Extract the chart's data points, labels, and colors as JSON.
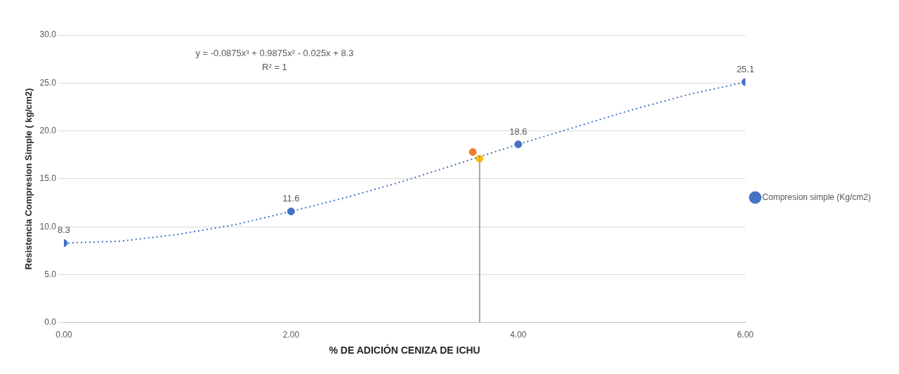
{
  "chart_data": {
    "type": "scatter",
    "xlabel": "% DE ADICIÓN CENIZA DE ICHU",
    "ylabel": "Resistencia Compresion Simple ( kg/cm2)",
    "xlim": [
      0,
      6
    ],
    "xticks": [
      {
        "value": 0,
        "label": "0.00"
      },
      {
        "value": 2,
        "label": "2.00"
      },
      {
        "value": 4,
        "label": "4.00"
      },
      {
        "value": 6,
        "label": "6.00"
      }
    ],
    "ylim": [
      0,
      30
    ],
    "yticks": [
      {
        "value": 0,
        "label": "0.0"
      },
      {
        "value": 5,
        "label": "5.0"
      },
      {
        "value": 10,
        "label": "10.0"
      },
      {
        "value": 15,
        "label": "15.0"
      },
      {
        "value": 20,
        "label": "20.0"
      },
      {
        "value": 25,
        "label": "25.0"
      },
      {
        "value": 30,
        "label": "30.0"
      }
    ],
    "grid": "y",
    "legend": "right",
    "marker": "circle",
    "annotations": [
      "y = -0.0875x³ + 0.9875x² - 0.025x + 8.3",
      "R² = 1"
    ],
    "series": [
      {
        "type": "line",
        "color": "#4472c4",
        "line_style": "dotted",
        "marker": "none",
        "x": [
          0,
          0.5,
          1,
          1.5,
          2,
          2.5,
          3,
          3.5,
          4,
          4.5,
          5,
          5.5,
          6
        ],
        "values": [
          8.3,
          8.5,
          9.2,
          10.2,
          11.6,
          13.1,
          14.8,
          16.7,
          18.6,
          20.4,
          22.2,
          23.8,
          25.1
        ]
      },
      {
        "type": "line",
        "color": "#a5a5a5",
        "line_style": "solid",
        "marker": "none",
        "x": [
          3.66,
          3.66
        ],
        "values": [
          0,
          17.1
        ]
      },
      {
        "name": "Compresion simple (Kg/cm2)",
        "color": "#4472c4",
        "x": [
          0,
          2,
          4,
          6
        ],
        "values": [
          8.3,
          11.6,
          18.6,
          25.1
        ],
        "value_labels": [
          "8.3",
          "11.6",
          "18.6",
          "25.1"
        ]
      },
      {
        "color": "#ed7d31",
        "x": [
          3.6
        ],
        "values": [
          17.8
        ]
      },
      {
        "color": "#ffc000",
        "x": [
          3.66
        ],
        "values": [
          17.1
        ]
      }
    ]
  }
}
